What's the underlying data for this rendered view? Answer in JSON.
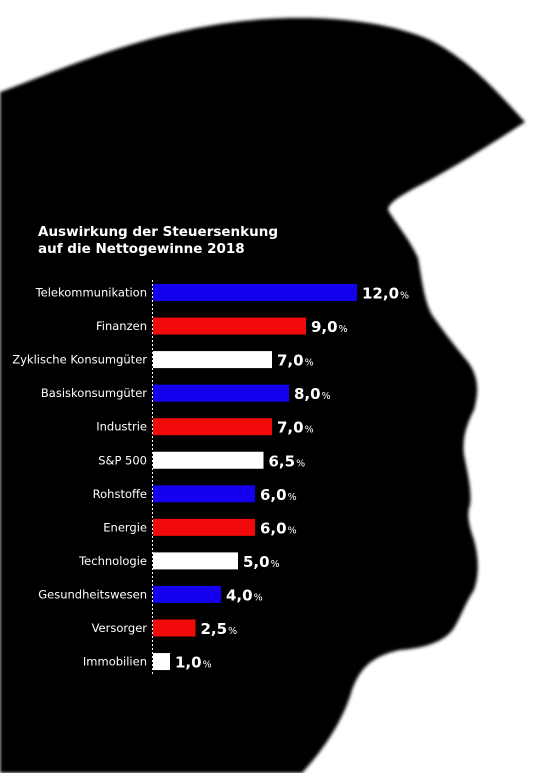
{
  "title": {
    "line1": "Auswirkung der Steuersenkung",
    "line2": "auf die Nettogewinne 2018"
  },
  "colors": {
    "background": "#ffffff",
    "silhouette": "#000000",
    "blue": "#1400ee",
    "red": "#f20a0a",
    "white": "#ffffff",
    "text": "#ffffff"
  },
  "chart_data": {
    "type": "bar",
    "orientation": "horizontal",
    "title": "Auswirkung der Steuersenkung auf die Nettogewinne 2018",
    "unit": "%",
    "categories": [
      "Telekommunikation",
      "Finanzen",
      "Zyklische Konsumgüter",
      "Basiskonsumgüter",
      "Industrie",
      "S&P 500",
      "Rohstoffe",
      "Energie",
      "Technologie",
      "Gesundheitswesen",
      "Versorger",
      "Immobilien"
    ],
    "values": [
      12.0,
      9.0,
      7.0,
      8.0,
      7.0,
      6.5,
      6.0,
      6.0,
      5.0,
      4.0,
      2.5,
      1.0
    ],
    "value_labels": [
      "12,0",
      "9,0",
      "7,0",
      "8,0",
      "7,0",
      "6,5",
      "6,0",
      "6,0",
      "5,0",
      "4,0",
      "2,5",
      "1,0"
    ],
    "bar_colors": [
      "blue",
      "red",
      "white",
      "blue",
      "red",
      "white",
      "blue",
      "red",
      "white",
      "blue",
      "red",
      "white"
    ],
    "xlim": [
      0,
      12
    ]
  }
}
